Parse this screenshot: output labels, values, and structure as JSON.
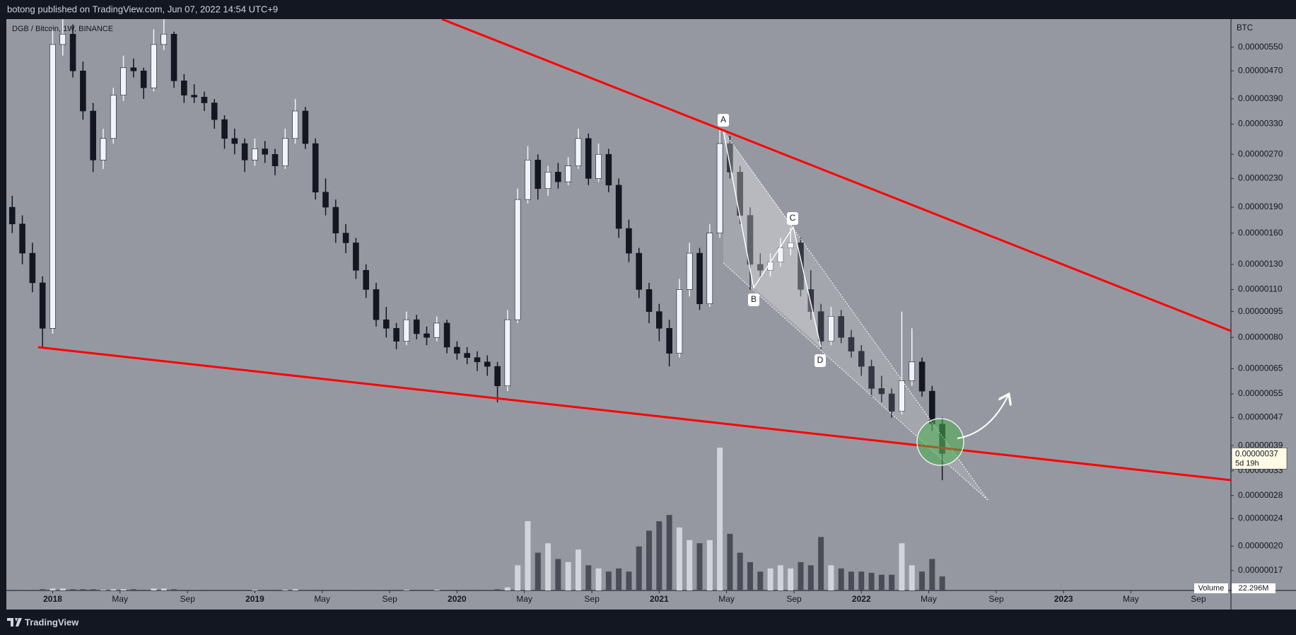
{
  "chart_data": {
    "type": "candlestick",
    "header": "botong published on TradingView.com, Jun 07, 2022 14:54 UTC+9",
    "title": "DGB / Bitcoin, 1W, BINANCE",
    "y_axis_label": "BTC",
    "log_scale": true,
    "grid": false,
    "xlim": [
      2017.771,
      2023.828
    ],
    "ylim": [
      1.49e-07,
      6.63e-06
    ],
    "xticks": [
      2018,
      {
        "value": 2018.333,
        "label": "May"
      },
      {
        "value": 2018.667,
        "label": "Sep"
      },
      2019,
      {
        "value": 2019.333,
        "label": "May"
      },
      {
        "value": 2019.667,
        "label": "Sep"
      },
      2020,
      {
        "value": 2020.333,
        "label": "May"
      },
      {
        "value": 2020.667,
        "label": "Sep"
      },
      2021,
      {
        "value": 2021.333,
        "label": "May"
      },
      {
        "value": 2021.667,
        "label": "Sep"
      },
      2022,
      {
        "value": 2022.333,
        "label": "May"
      },
      {
        "value": 2022.667,
        "label": "Sep"
      },
      2023,
      {
        "value": 2023.333,
        "label": "May"
      },
      {
        "value": 2023.667,
        "label": "Sep"
      }
    ],
    "yticks": [
      {
        "value": 5.5e-06,
        "label": "0.00000550"
      },
      {
        "value": 4.7e-06,
        "label": "0.00000470"
      },
      {
        "value": 3.9e-06,
        "label": "0.00000390"
      },
      {
        "value": 3.3e-06,
        "label": "0.00000330"
      },
      {
        "value": 2.7e-06,
        "label": "0.00000270"
      },
      {
        "value": 2.3e-06,
        "label": "0.00000230"
      },
      {
        "value": 1.9e-06,
        "label": "0.00000190"
      },
      {
        "value": 1.6e-06,
        "label": "0.00000160"
      },
      {
        "value": 1.3e-06,
        "label": "0.00000130"
      },
      {
        "value": 1.1e-06,
        "label": "0.00000110"
      },
      {
        "value": 9.5e-07,
        "label": "0.00000095"
      },
      {
        "value": 8e-07,
        "label": "0.00000080"
      },
      {
        "value": 6.5e-07,
        "label": "0.00000065"
      },
      {
        "value": 5.5e-07,
        "label": "0.00000055"
      },
      {
        "value": 4.7e-07,
        "label": "0.00000047"
      },
      {
        "value": 3.9e-07,
        "label": "0.00000039"
      },
      {
        "value": 3.3e-07,
        "label": "0.00000033"
      },
      {
        "value": 2.8e-07,
        "label": "0.00000028"
      },
      {
        "value": 2.4e-07,
        "label": "0.00000024"
      },
      {
        "value": 2e-07,
        "label": "0.00000020"
      },
      {
        "value": 1.7e-07,
        "label": "0.00000017"
      }
    ],
    "up_color": "#f0f3fa",
    "down_color": "#131722",
    "candles": {
      "x": [
        2017.8,
        2017.85,
        2017.9,
        2017.95,
        2018.0,
        2018.05,
        2018.1,
        2018.15,
        2018.2,
        2018.25,
        2018.3,
        2018.35,
        2018.4,
        2018.45,
        2018.5,
        2018.55,
        2018.6,
        2018.65,
        2018.7,
        2018.75,
        2018.8,
        2018.85,
        2018.9,
        2018.95,
        2019.0,
        2019.05,
        2019.1,
        2019.15,
        2019.2,
        2019.25,
        2019.3,
        2019.35,
        2019.4,
        2019.45,
        2019.5,
        2019.55,
        2019.6,
        2019.65,
        2019.7,
        2019.75,
        2019.8,
        2019.85,
        2019.9,
        2019.95,
        2020.0,
        2020.05,
        2020.1,
        2020.15,
        2020.2,
        2020.25,
        2020.3,
        2020.35,
        2020.4,
        2020.45,
        2020.5,
        2020.55,
        2020.6,
        2020.65,
        2020.7,
        2020.75,
        2020.8,
        2020.85,
        2020.9,
        2020.95,
        2021.0,
        2021.05,
        2021.1,
        2021.15,
        2021.2,
        2021.25,
        2021.3,
        2021.35,
        2021.4,
        2021.45,
        2021.5,
        2021.55,
        2021.6,
        2021.65,
        2021.7,
        2021.75,
        2021.8,
        2021.85,
        2021.9,
        2021.95,
        2022.0,
        2022.05,
        2022.1,
        2022.15,
        2022.2,
        2022.25,
        2022.3,
        2022.35,
        2022.4
      ],
      "open": [
        1.9e-06,
        1.7e-06,
        1.4e-06,
        1.15e-06,
        8.5e-07,
        5.6e-06,
        6e-06,
        4.7e-06,
        3.6e-06,
        2.6e-06,
        3e-06,
        4e-06,
        4.8e-06,
        4.7e-06,
        4.2e-06,
        5.6e-06,
        6e-06,
        4.4e-06,
        4e-06,
        3.95e-06,
        3.8e-06,
        3.4e-06,
        3e-06,
        2.9e-06,
        2.6e-06,
        2.8e-06,
        2.7e-06,
        2.5e-06,
        3e-06,
        3.6e-06,
        2.9e-06,
        2.1e-06,
        1.9e-06,
        1.6e-06,
        1.5e-06,
        1.25e-06,
        1.1e-06,
        9e-07,
        8.5e-07,
        7.8e-07,
        9e-07,
        8.2e-07,
        8e-07,
        8.8e-07,
        7.5e-07,
        7.2e-07,
        7e-07,
        6.8e-07,
        6.6e-07,
        5.8e-07,
        9e-07,
        2e-06,
        2.6e-06,
        2.15e-06,
        2.4e-06,
        2.25e-06,
        2.5e-06,
        3e-06,
        2.3e-06,
        2.7e-06,
        2.2e-06,
        1.65e-06,
        1.4e-06,
        1.1e-06,
        9.5e-07,
        8.5e-07,
        7.2e-07,
        1.1e-06,
        1.4e-06,
        1e-06,
        1.6e-06,
        2.9e-06,
        2.4e-06,
        1.8e-06,
        1.3e-06,
        1.25e-06,
        1.32e-06,
        1.45e-06,
        1.5e-06,
        1.1e-06,
        9.5e-07,
        7.8e-07,
        9.2e-07,
        8e-07,
        7.3e-07,
        6.6e-07,
        5.7e-07,
        5.5e-07,
        4.9e-07,
        6e-07,
        6.8e-07,
        5.6e-07,
        4.5e-07
      ],
      "high": [
        2.05e-06,
        1.8e-06,
        1.5e-06,
        1.2e-06,
        6.2e-06,
        6.8e-06,
        6.4e-06,
        5e-06,
        3.8e-06,
        3.2e-06,
        4.2e-06,
        5.2e-06,
        5.1e-06,
        4.8e-06,
        6.2e-06,
        6.8e-06,
        6.1e-06,
        4.6e-06,
        4.3e-06,
        4.1e-06,
        3.9e-06,
        3.5e-06,
        3.2e-06,
        3e-06,
        3e-06,
        2.95e-06,
        2.8e-06,
        3.2e-06,
        3.9e-06,
        3.7e-06,
        3e-06,
        2.3e-06,
        2e-06,
        1.7e-06,
        1.55e-06,
        1.3e-06,
        1.15e-06,
        9.8e-07,
        8.8e-07,
        9.5e-07,
        9.3e-07,
        8.6e-07,
        9.2e-07,
        9e-07,
        7.8e-07,
        7.5e-07,
        7.3e-07,
        7.1e-07,
        6.8e-07,
        9.6e-07,
        2.15e-06,
        2.85e-06,
        2.7e-06,
        2.5e-06,
        2.55e-06,
        2.65e-06,
        3.2e-06,
        3.1e-06,
        2.9e-06,
        2.8e-06,
        2.3e-06,
        1.75e-06,
        1.45e-06,
        1.15e-06,
        1e-06,
        9e-07,
        1.18e-06,
        1.5e-06,
        1.45e-06,
        1.7e-06,
        3.22e-06,
        3.05e-06,
        2.5e-06,
        1.9e-06,
        1.4e-06,
        1.4e-06,
        1.55e-06,
        1.66e-06,
        1.55e-06,
        1.25e-06,
        1e-06,
        9.8e-07,
        9.6e-07,
        8.4e-07,
        7.6e-07,
        6.9e-07,
        6.2e-07,
        5.7e-07,
        9.5e-07,
        8.5e-07,
        7e-07,
        5.8e-07,
        4.7e-07
      ],
      "low": [
        1.6e-06,
        1.3e-06,
        1.08e-06,
        7.5e-07,
        8.2e-07,
        5.2e-06,
        4.5e-06,
        3.4e-06,
        2.4e-06,
        2.45e-06,
        2.9e-06,
        3.85e-06,
        4.5e-06,
        3.9e-06,
        4.1e-06,
        5.4e-06,
        4.2e-06,
        3.8e-06,
        3.8e-06,
        3.6e-06,
        3.2e-06,
        2.8e-06,
        2.7e-06,
        2.4e-06,
        2.5e-06,
        2.55e-06,
        2.35e-06,
        2.45e-06,
        2.9e-06,
        2.8e-06,
        2e-06,
        1.8e-06,
        1.5e-06,
        1.4e-06,
        1.18e-06,
        1.04e-06,
        8.6e-07,
        8e-07,
        7.4e-07,
        7.6e-07,
        7.9e-07,
        7.6e-07,
        7.8e-07,
        7.2e-07,
        6.9e-07,
        6.7e-07,
        6.4e-07,
        6.2e-07,
        5.2e-07,
        5.6e-07,
        8.8e-07,
        1.95e-06,
        2e-06,
        2.05e-06,
        2.15e-06,
        2.2e-06,
        2.45e-06,
        2.2e-06,
        2.25e-06,
        2.1e-06,
        1.55e-06,
        1.32e-06,
        1.04e-06,
        8.8e-07,
        7.8e-07,
        6.6e-07,
        7e-07,
        1.05e-06,
        9.6e-07,
        9.8e-07,
        1.55e-06,
        2.3e-06,
        1.7e-06,
        1.1e-06,
        1.18e-06,
        1.2e-06,
        1.28e-06,
        1.38e-06,
        1.05e-06,
        9e-07,
        7.4e-07,
        7.6e-07,
        7.7e-07,
        7e-07,
        6.2e-07,
        5.4e-07,
        5.2e-07,
        4.7e-07,
        4.8e-07,
        5.8e-07,
        5.4e-07,
        4.3e-07,
        3.1e-07
      ],
      "close": [
        1.7e-06,
        1.4e-06,
        1.15e-06,
        8.5e-07,
        5.6e-06,
        6e-06,
        4.7e-06,
        3.6e-06,
        2.6e-06,
        3e-06,
        4e-06,
        4.8e-06,
        4.7e-06,
        4.2e-06,
        5.6e-06,
        6e-06,
        4.4e-06,
        4e-06,
        3.95e-06,
        3.8e-06,
        3.4e-06,
        3e-06,
        2.9e-06,
        2.6e-06,
        2.8e-06,
        2.7e-06,
        2.5e-06,
        3e-06,
        3.6e-06,
        2.9e-06,
        2.1e-06,
        1.9e-06,
        1.6e-06,
        1.5e-06,
        1.25e-06,
        1.1e-06,
        9e-07,
        8.5e-07,
        7.8e-07,
        9e-07,
        8.2e-07,
        8e-07,
        8.8e-07,
        7.5e-07,
        7.2e-07,
        7e-07,
        6.8e-07,
        6.6e-07,
        5.8e-07,
        9e-07,
        2e-06,
        2.6e-06,
        2.15e-06,
        2.4e-06,
        2.25e-06,
        2.5e-06,
        3e-06,
        2.3e-06,
        2.7e-06,
        2.2e-06,
        1.65e-06,
        1.4e-06,
        1.1e-06,
        9.5e-07,
        8.5e-07,
        7.2e-07,
        1.1e-06,
        1.4e-06,
        1e-06,
        1.6e-06,
        2.9e-06,
        2.4e-06,
        1.8e-06,
        1.3e-06,
        1.25e-06,
        1.32e-06,
        1.45e-06,
        1.5e-06,
        1.1e-06,
        9.5e-07,
        7.8e-07,
        9.2e-07,
        8e-07,
        7.3e-07,
        6.6e-07,
        5.7e-07,
        5.5e-07,
        4.9e-07,
        6e-07,
        6.8e-07,
        5.6e-07,
        4.5e-07,
        3.7e-07
      ]
    },
    "volume": {
      "name": "Volume",
      "up_color": "#d1d4dc",
      "down_color": "#4a4d57",
      "values": [
        1,
        1,
        1,
        2,
        3,
        3,
        2,
        2,
        2,
        1,
        2,
        2,
        2,
        1,
        3,
        3,
        2,
        1,
        1,
        1,
        1,
        1,
        1,
        1,
        1,
        1,
        1,
        1,
        2,
        1,
        1,
        1,
        1,
        1,
        1,
        1,
        1,
        1,
        1,
        1,
        1,
        1,
        1,
        1,
        1,
        1,
        1,
        1,
        2,
        5,
        40,
        110,
        60,
        75,
        50,
        45,
        65,
        40,
        35,
        30,
        35,
        30,
        70,
        95,
        110,
        120,
        100,
        80,
        75,
        80,
        227,
        90,
        60,
        45,
        30,
        35,
        40,
        35,
        45,
        40,
        85,
        40,
        35,
        30,
        30,
        28,
        25,
        25,
        75,
        40,
        30,
        50,
        22.296
      ],
      "current_label": "22.296M"
    },
    "last_price_label": "0.00000037",
    "countdown": "5d 19h",
    "annotations": [
      "A",
      "B",
      "C",
      "D"
    ],
    "footer": "TradingView"
  }
}
